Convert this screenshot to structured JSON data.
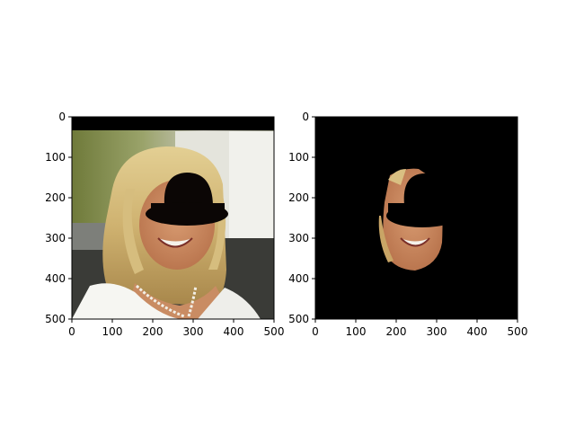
{
  "chart_data": [
    {
      "type": "image",
      "content": "photo of a smiling woman with shoulder-length blonde hair, white collared top and a pearl necklace; a black bowler-hat shaped region covers the upper face; a black band covers the top rows",
      "xlim": [
        0,
        500
      ],
      "ylim": [
        500,
        0
      ],
      "xticks": [
        0,
        100,
        200,
        300,
        400,
        500
      ],
      "yticks": [
        0,
        100,
        200,
        300,
        400,
        500
      ],
      "xtick_labels": [
        "0",
        "100",
        "200",
        "300",
        "400",
        "500"
      ],
      "ytick_labels": [
        "0",
        "100",
        "200",
        "300",
        "400",
        "500"
      ],
      "title": "",
      "xlabel": "",
      "ylabel": ""
    },
    {
      "type": "image",
      "content": "segmentation mask output: black background with only the lower face region (mouth, chin) visible; a black bowler-hat shaped region covers the upper face",
      "xlim": [
        0,
        500
      ],
      "ylim": [
        500,
        0
      ],
      "xticks": [
        0,
        100,
        200,
        300,
        400,
        500
      ],
      "yticks": [
        0,
        100,
        200,
        300,
        400,
        500
      ],
      "xtick_labels": [
        "0",
        "100",
        "200",
        "300",
        "400",
        "500"
      ],
      "ytick_labels": [
        "0",
        "100",
        "200",
        "300",
        "400",
        "500"
      ],
      "title": "",
      "xlabel": "",
      "ylabel": ""
    }
  ]
}
